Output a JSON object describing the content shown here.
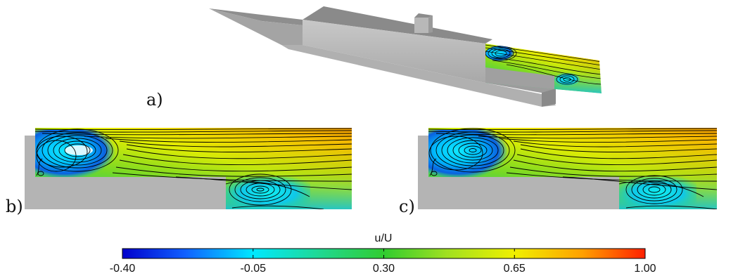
{
  "panels": {
    "a": {
      "label": "a)"
    },
    "b": {
      "label": "b)"
    },
    "c": {
      "label": "c)"
    }
  },
  "colorbar": {
    "title": "u/U",
    "ticks": [
      "-0.40",
      "-0.05",
      "0.30",
      "0.65",
      "1.00"
    ],
    "range": [
      -0.4,
      1.0
    ],
    "stops": [
      "#0000cc",
      "#1060ff",
      "#00e8ff",
      "#20d890",
      "#30cc30",
      "#a0e020",
      "#f0f000",
      "#ffa000",
      "#ff2000"
    ]
  },
  "colors": {
    "solid": "#b4b4b4",
    "streamline": "#000000"
  }
}
